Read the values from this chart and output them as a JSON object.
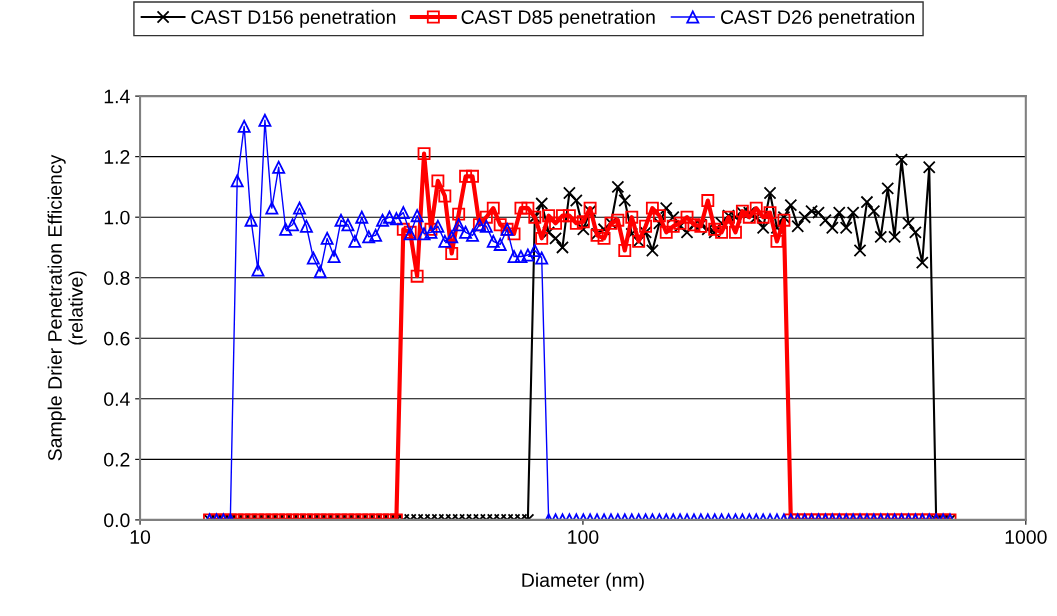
{
  "chart_data": {
    "type": "line",
    "xlabel": "Diameter (nm)",
    "ylabel": "Sample Drier Penetration Efficiency\n(relative)",
    "log": "x",
    "grid": "y",
    "legend": "top",
    "xlim": [
      10,
      1000
    ],
    "xticks": [
      10,
      100,
      1000
    ],
    "ylim": [
      0,
      1.4
    ],
    "yticks": [
      {
        "value": 0,
        "label": "0.0"
      },
      {
        "value": 0.2,
        "label": "0.2"
      },
      {
        "value": 0.4,
        "label": "0.4"
      },
      {
        "value": 0.6,
        "label": "0.6"
      },
      {
        "value": 0.8,
        "label": "0.8"
      },
      {
        "value": 1.0,
        "label": "1.0"
      },
      {
        "value": 1.2,
        "label": "1.2"
      },
      {
        "value": 1.4,
        "label": "1.4"
      }
    ],
    "x": [
      14.35,
      14.88,
      15.42,
      15.99,
      16.57,
      17.18,
      17.81,
      18.46,
      19.14,
      19.84,
      20.56,
      21.32,
      22.1,
      22.91,
      23.75,
      24.62,
      25.52,
      26.45,
      27.42,
      28.43,
      29.47,
      30.55,
      31.67,
      32.83,
      34.03,
      35.28,
      36.57,
      37.91,
      39.3,
      40.74,
      42.23,
      43.78,
      45.38,
      47.04,
      48.77,
      50.55,
      52.41,
      54.33,
      56.32,
      58.38,
      60.52,
      62.74,
      65.04,
      67.42,
      69.89,
      72.45,
      75.11,
      77.86,
      80.71,
      83.67,
      86.73,
      89.91,
      93.2,
      96.62,
      100.2,
      103.8,
      107.6,
      111.6,
      115.7,
      119.9,
      124.3,
      128.9,
      133.6,
      138.5,
      143.5,
      148.8,
      154.2,
      159.9,
      165.7,
      171.8,
      178.1,
      184.6,
      191.4,
      198.4,
      205.6,
      213.2,
      221.0,
      229.1,
      237.5,
      246.2,
      255.2,
      264.5,
      274.2,
      284.3,
      294.7,
      305.5,
      316.7,
      328.3,
      340.3,
      352.8,
      365.7,
      379.1,
      393.0,
      407.4,
      422.3,
      437.8,
      453.8,
      470.4,
      487.7,
      505.5,
      524.1,
      543.3,
      563.2,
      583.8,
      605.2,
      627.4,
      650.4,
      674.2
    ],
    "series": [
      {
        "name": "CAST D156 penetration",
        "color": "#000000",
        "marker": "cross",
        "values": [
          0,
          0,
          0,
          0,
          0,
          0,
          0,
          0,
          0,
          0,
          0,
          0,
          0,
          0,
          0,
          0,
          0,
          0,
          0,
          0,
          0,
          0,
          0,
          0,
          0,
          0,
          0,
          0,
          0,
          0,
          0,
          0,
          0,
          0,
          0,
          0,
          0,
          0,
          0,
          0,
          0,
          0,
          0,
          0,
          0,
          0,
          0,
          1.0,
          1.045,
          0.95,
          0.93,
          0.9,
          1.08,
          1.055,
          0.96,
          1.02,
          0.945,
          0.96,
          0.98,
          1.1,
          1.055,
          0.945,
          0.92,
          0.95,
          0.89,
          0.98,
          1.03,
          1.0,
          0.97,
          0.95,
          0.975,
          0.975,
          0.96,
          0.95,
          0.98,
          1.005,
          1.0,
          1.015,
          1.015,
          1.0,
          0.965,
          1.08,
          0.965,
          1.0,
          1.04,
          0.97,
          1.0,
          1.02,
          1.015,
          0.99,
          0.965,
          1.015,
          0.965,
          1.015,
          0.89,
          1.05,
          1.02,
          0.935,
          1.095,
          0.935,
          1.19,
          0.98,
          0.95,
          0.85,
          1.165,
          0,
          0,
          0
        ]
      },
      {
        "name": "CAST D85 penetration",
        "color": "#ff0000",
        "marker": "square",
        "values": [
          0,
          0,
          0,
          0,
          0,
          0,
          0,
          0,
          0,
          0,
          0,
          0,
          0,
          0,
          0,
          0,
          0,
          0,
          0,
          0,
          0,
          0,
          0,
          0,
          0,
          0,
          0,
          0,
          0.96,
          0.95,
          0.805,
          1.21,
          0.96,
          1.12,
          1.07,
          0.88,
          1.01,
          1.135,
          1.135,
          0.975,
          1.0,
          1.03,
          0.975,
          0.96,
          0.945,
          1.03,
          1.03,
          1.0,
          0.93,
          1.005,
          0.98,
          1.005,
          1.005,
          0.98,
          0.985,
          1.03,
          0.94,
          0.93,
          0.98,
          0.99,
          0.89,
          1.0,
          0.92,
          0.97,
          1.03,
          1.005,
          0.95,
          0.97,
          0.98,
          1.0,
          0.975,
          0.97,
          1.055,
          0.96,
          0.95,
          1.0,
          0.95,
          1.02,
          1.0,
          1.03,
          1.0,
          1.015,
          0.92,
          0.99,
          0,
          0,
          0,
          0,
          0,
          0,
          0,
          0,
          0,
          0,
          0,
          0,
          0,
          0,
          0,
          0,
          0,
          0,
          0,
          0,
          0,
          0,
          0,
          0
        ]
      },
      {
        "name": "CAST D26 penetration",
        "color": "#0000ff",
        "marker": "triangle",
        "values": [
          0,
          0,
          0,
          0,
          1.12,
          1.3,
          0.99,
          0.825,
          1.32,
          1.03,
          1.165,
          0.96,
          0.975,
          1.03,
          0.97,
          0.865,
          0.82,
          0.93,
          0.87,
          0.99,
          0.975,
          0.92,
          1.0,
          0.935,
          0.94,
          0.99,
          1.0,
          0.995,
          1.015,
          0.945,
          1.005,
          0.945,
          0.95,
          0.97,
          0.92,
          0.935,
          0.975,
          0.95,
          0.94,
          0.975,
          0.97,
          0.92,
          0.91,
          0.96,
          0.87,
          0.87,
          0.875,
          0.89,
          0.865,
          0,
          0,
          0,
          0,
          0,
          0,
          0,
          0,
          0,
          0,
          0,
          0,
          0,
          0,
          0,
          0,
          0,
          0,
          0,
          0,
          0,
          0,
          0,
          0,
          0,
          0,
          0,
          0,
          0,
          0,
          0,
          0,
          0,
          0,
          0,
          0,
          0,
          0,
          0,
          0,
          0,
          0,
          0,
          0,
          0,
          0,
          0,
          0,
          0,
          0,
          0,
          0,
          0,
          0,
          0,
          0,
          0,
          0,
          0
        ]
      }
    ]
  }
}
